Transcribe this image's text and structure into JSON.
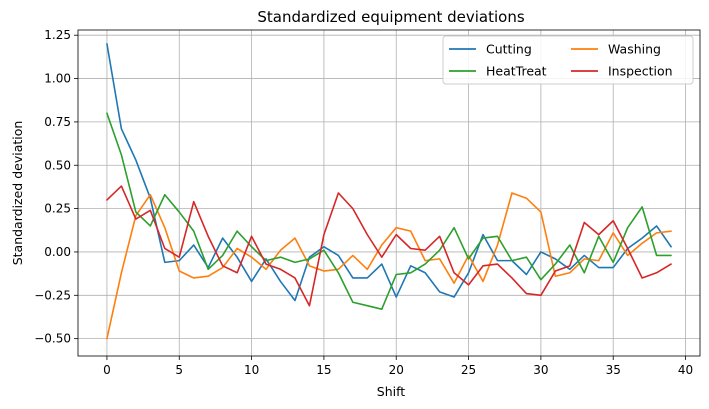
{
  "chart_data": {
    "type": "line",
    "title": "Standardized equipment deviations",
    "xlabel": "Shift",
    "ylabel": "Standardized deviation",
    "xlim": [
      -2,
      41
    ],
    "ylim": [
      -0.6,
      1.28
    ],
    "xticks": [
      0,
      5,
      10,
      15,
      20,
      25,
      30,
      35,
      40
    ],
    "yticks": [
      -0.5,
      -0.25,
      0.0,
      0.25,
      0.5,
      0.75,
      1.0,
      1.25
    ],
    "ytick_labels": [
      "−0.50",
      "−0.25",
      "0.00",
      "0.25",
      "0.50",
      "0.75",
      "1.00",
      "1.25"
    ],
    "grid": true,
    "legend_position": "top-right",
    "x": [
      0,
      1,
      2,
      3,
      4,
      5,
      6,
      7,
      8,
      9,
      10,
      11,
      12,
      13,
      14,
      15,
      16,
      17,
      18,
      19,
      20,
      21,
      22,
      23,
      24,
      25,
      26,
      27,
      28,
      29,
      30,
      31,
      32,
      33,
      34,
      35,
      36,
      37,
      38,
      39
    ],
    "series": [
      {
        "name": "Cutting",
        "color": "#1f77b4",
        "values": [
          1.2,
          0.71,
          0.53,
          0.31,
          -0.06,
          -0.05,
          0.04,
          -0.09,
          0.08,
          -0.03,
          -0.17,
          -0.04,
          -0.17,
          -0.28,
          -0.03,
          0.03,
          -0.02,
          -0.15,
          -0.15,
          -0.07,
          -0.26,
          -0.08,
          -0.12,
          -0.23,
          -0.26,
          -0.12,
          0.1,
          -0.05,
          -0.05,
          -0.13,
          0.0,
          -0.04,
          -0.1,
          -0.02,
          -0.09,
          -0.09,
          0.02,
          0.08,
          0.15,
          0.03
        ]
      },
      {
        "name": "Washing",
        "color": "#ff7f0e",
        "values": [
          -0.5,
          -0.12,
          0.21,
          0.33,
          0.14,
          -0.11,
          -0.15,
          -0.14,
          -0.09,
          0.02,
          -0.03,
          -0.1,
          0.01,
          0.08,
          -0.08,
          -0.11,
          -0.1,
          -0.02,
          -0.1,
          0.04,
          0.14,
          0.12,
          -0.05,
          -0.04,
          -0.18,
          -0.02,
          -0.17,
          0.04,
          0.34,
          0.31,
          0.23,
          -0.14,
          -0.12,
          -0.04,
          -0.05,
          0.11,
          -0.02,
          0.05,
          0.11,
          0.12
        ]
      },
      {
        "name": "HeatTreat",
        "color": "#2ca02c",
        "values": [
          0.8,
          0.56,
          0.23,
          0.15,
          0.33,
          0.23,
          0.12,
          -0.1,
          -0.02,
          0.12,
          0.03,
          -0.05,
          -0.03,
          -0.06,
          -0.04,
          0.01,
          -0.12,
          -0.29,
          -0.31,
          -0.33,
          -0.13,
          -0.12,
          -0.07,
          0.01,
          0.14,
          -0.04,
          0.08,
          0.09,
          -0.05,
          -0.03,
          -0.16,
          -0.07,
          0.04,
          -0.12,
          0.09,
          -0.06,
          0.14,
          0.26,
          -0.02,
          -0.02
        ]
      },
      {
        "name": "Inspection",
        "color": "#d62728",
        "values": [
          0.3,
          0.38,
          0.19,
          0.24,
          0.02,
          -0.03,
          0.29,
          0.09,
          -0.08,
          -0.12,
          0.09,
          -0.07,
          -0.1,
          -0.15,
          -0.31,
          0.1,
          0.34,
          0.25,
          0.1,
          -0.03,
          0.1,
          0.02,
          0.01,
          0.09,
          -0.12,
          -0.19,
          -0.08,
          -0.07,
          -0.15,
          -0.24,
          -0.25,
          -0.11,
          -0.08,
          0.17,
          0.1,
          0.18,
          0.02,
          -0.15,
          -0.12,
          -0.07
        ]
      }
    ]
  }
}
